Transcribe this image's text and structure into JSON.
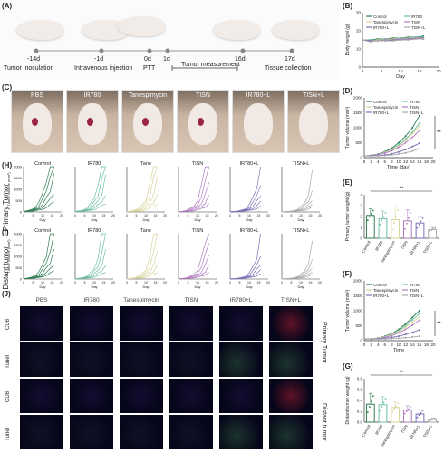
{
  "panels": {
    "A": "(A)",
    "B": "(B)",
    "C": "(C)",
    "D": "(D)",
    "E": "(E)",
    "F": "(F)",
    "G": "(G)",
    "H": "(H)",
    "I": "(I)",
    "J": "(J)"
  },
  "timeline": {
    "points": [
      "-14d",
      "-1d",
      "0d",
      "1d",
      "16d",
      "17d"
    ],
    "labels": [
      "Tumor inoculation",
      "Intravenous injection",
      "PTT",
      "Tumor measurement",
      "Tissue collection"
    ]
  },
  "groups": [
    "PBS",
    "IR780",
    "Tanespimycin",
    "TISN",
    "IR780+L",
    "TISN+L"
  ],
  "row_labels": {
    "h": "Primary Tumor",
    "i": "Distant tumor"
  },
  "small_titles": [
    "Control",
    "IR780",
    "Tane",
    "TISN",
    "IR780+L",
    "TISN+L"
  ],
  "small_axes": {
    "x": "Day",
    "y": "Tumor volume (mm³)",
    "yticks": [
      "0",
      "500",
      "1000",
      "1500",
      "2000"
    ],
    "xticks": [
      "0",
      "5",
      "10",
      "15",
      "20"
    ]
  },
  "if_rows": [
    "CD8",
    "Tunel",
    "CD8",
    "Tunel"
  ],
  "if_side": {
    "top": "Primary Tumor",
    "bottom": "Distant tumor"
  },
  "colors": {
    "control": "#2f7d52",
    "ir780": "#6bbfa3",
    "tane": "#d8d49a",
    "tisn": "#b07ac2",
    "ir780l": "#7e6fb8",
    "tisnl": "#a8a8a8"
  },
  "chart_data": [
    {
      "id": "B",
      "type": "line",
      "xlabel": "Day",
      "ylabel": "Body weight (g)",
      "ylim": [
        0,
        30
      ],
      "xlim": [
        0,
        20
      ],
      "yticks": [
        "0",
        "10",
        "20",
        "30"
      ],
      "xticks": [
        "0",
        "5",
        "10",
        "15",
        "20"
      ],
      "legend": [
        "Control",
        "IR780",
        "Tanespimycin",
        "TISN",
        "IR780+L",
        "TISN+L"
      ],
      "x": [
        0,
        2,
        4,
        6,
        8,
        10,
        12,
        14,
        16
      ],
      "series": [
        {
          "name": "Control",
          "values": [
            15,
            15,
            15.5,
            15.5,
            16,
            16,
            16.5,
            16.5,
            17
          ]
        },
        {
          "name": "IR780",
          "values": [
            15,
            15,
            15,
            15.5,
            15.5,
            16,
            16,
            16.5,
            16.5
          ]
        },
        {
          "name": "Tanespimycin",
          "values": [
            15,
            14.5,
            15,
            15,
            15.5,
            15.5,
            16,
            16,
            16
          ]
        },
        {
          "name": "TISN",
          "values": [
            15,
            14.5,
            14.5,
            15,
            15,
            15.5,
            15.5,
            16,
            16
          ]
        },
        {
          "name": "IR780+L",
          "values": [
            15,
            14.5,
            14.5,
            14.5,
            15,
            15,
            15.5,
            15.5,
            15.5
          ]
        },
        {
          "name": "TISN+L",
          "values": [
            15,
            14,
            14.5,
            14.5,
            14.5,
            15,
            15,
            15.5,
            15.5
          ]
        }
      ]
    },
    {
      "id": "D",
      "type": "line",
      "xlabel": "Time (day)",
      "ylabel": "Tumor volume (mm³)",
      "ylim": [
        0,
        2000
      ],
      "xlim": [
        0,
        20
      ],
      "yticks": [
        "0",
        "500",
        "1000",
        "1500",
        "2000"
      ],
      "xticks": [
        "0",
        "2",
        "4",
        "6",
        "8",
        "10",
        "12",
        "14",
        "16",
        "18",
        "20"
      ],
      "legend": [
        "Control",
        "IR780",
        "Tanespimycin",
        "TISN",
        "IR780+L",
        "TISN+L"
      ],
      "annotation": "**",
      "x": [
        0,
        2,
        4,
        6,
        8,
        10,
        12,
        14,
        16
      ],
      "series": [
        {
          "name": "Control",
          "values": [
            60,
            80,
            120,
            200,
            320,
            500,
            720,
            1000,
            1400
          ]
        },
        {
          "name": "IR780",
          "values": [
            60,
            75,
            110,
            180,
            280,
            430,
            620,
            850,
            1150
          ]
        },
        {
          "name": "Tanespimycin",
          "values": [
            60,
            75,
            105,
            170,
            260,
            400,
            580,
            800,
            1050
          ]
        },
        {
          "name": "TISN",
          "values": [
            60,
            70,
            100,
            150,
            230,
            350,
            500,
            680,
            900
          ]
        },
        {
          "name": "IR780+L",
          "values": [
            60,
            60,
            70,
            90,
            130,
            190,
            270,
            370,
            480
          ]
        },
        {
          "name": "TISN+L",
          "values": [
            60,
            55,
            60,
            70,
            90,
            120,
            160,
            220,
            300
          ]
        }
      ]
    },
    {
      "id": "E",
      "type": "bar",
      "ylabel": "Primary tumor weight (g)",
      "ylim": [
        0,
        4
      ],
      "yticks": [
        "0",
        "1",
        "2",
        "3",
        "4"
      ],
      "categories": [
        "Control",
        "IR780",
        "Tanespimycin",
        "TISN",
        "IR780+L",
        "TISN+L"
      ],
      "values": [
        2.1,
        1.8,
        1.7,
        1.6,
        1.4,
        0.8
      ],
      "errors": [
        0.6,
        0.7,
        1.2,
        1.0,
        0.6,
        0.2
      ],
      "annotation": "**"
    },
    {
      "id": "F",
      "type": "line",
      "xlabel": "Time",
      "ylabel": "Tumor volume (mm³)",
      "ylim": [
        0,
        2000
      ],
      "xlim": [
        0,
        20
      ],
      "yticks": [
        "0",
        "500",
        "1000",
        "1500",
        "2000"
      ],
      "xticks": [
        "0",
        "2",
        "4",
        "6",
        "8",
        "10",
        "12",
        "14",
        "16",
        "18",
        "20"
      ],
      "legend": [
        "Control",
        "IR780",
        "Tanespimycin",
        "TISN",
        "IR780+L",
        "TISN+L"
      ],
      "annotation": "**",
      "x": [
        0,
        2,
        4,
        6,
        8,
        10,
        12,
        14,
        16
      ],
      "series": [
        {
          "name": "Control",
          "values": [
            50,
            60,
            90,
            150,
            240,
            380,
            560,
            780,
            1000
          ]
        },
        {
          "name": "IR780",
          "values": [
            50,
            58,
            85,
            140,
            220,
            340,
            500,
            700,
            900
          ]
        },
        {
          "name": "Tanespimycin",
          "values": [
            50,
            55,
            80,
            130,
            200,
            310,
            450,
            620,
            800
          ]
        },
        {
          "name": "TISN",
          "values": [
            50,
            52,
            70,
            110,
            170,
            260,
            380,
            520,
            680
          ]
        },
        {
          "name": "IR780+L",
          "values": [
            50,
            50,
            60,
            80,
            110,
            150,
            210,
            280,
            360
          ]
        },
        {
          "name": "TISN+L",
          "values": [
            50,
            48,
            50,
            55,
            65,
            80,
            100,
            120,
            150
          ]
        }
      ]
    },
    {
      "id": "G",
      "type": "bar",
      "ylabel": "Distant tumor weight (g)",
      "ylim": [
        0,
        0.8
      ],
      "yticks": [
        "0.0",
        "0.2",
        "0.4",
        "0.6",
        "0.8"
      ],
      "categories": [
        "Control",
        "IR780",
        "Tanespimycin",
        "TISN",
        "IR780+L",
        "TISN+L"
      ],
      "values": [
        0.33,
        0.32,
        0.27,
        0.22,
        0.15,
        0.05
      ],
      "errors": [
        0.2,
        0.15,
        0.1,
        0.08,
        0.08,
        0.03
      ],
      "annotation": "**"
    }
  ]
}
